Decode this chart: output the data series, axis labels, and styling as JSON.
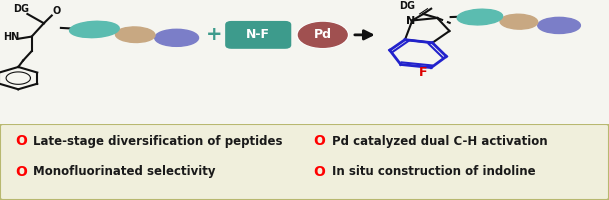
{
  "background_top": "#f5f5f0",
  "background_bottom": "#f0efdc",
  "border_color": "#b8b870",
  "fig_width": 6.09,
  "fig_height": 2.0,
  "dpi": 100,
  "bullet_color": "#ff0000",
  "text_color": "#1a1a1a",
  "legend_items_left": [
    "Late-stage diversification of peptides",
    "Monofluorinated selectivity"
  ],
  "legend_items_right": [
    "Pd catalyzed dual C-H activation",
    "In situ construction of indoline"
  ],
  "colors": {
    "teal_ellipse": "#5bbcb0",
    "tan_ellipse": "#c8a882",
    "blue_ellipse": "#7b7ec8",
    "nf_box": "#3d9b8c",
    "pd_circle": "#a05050",
    "blue_ring": "#2222cc",
    "red_F": "#dd0000",
    "black": "#111111",
    "plus_color": "#3d9b8c",
    "arrow_color": "#111111"
  }
}
